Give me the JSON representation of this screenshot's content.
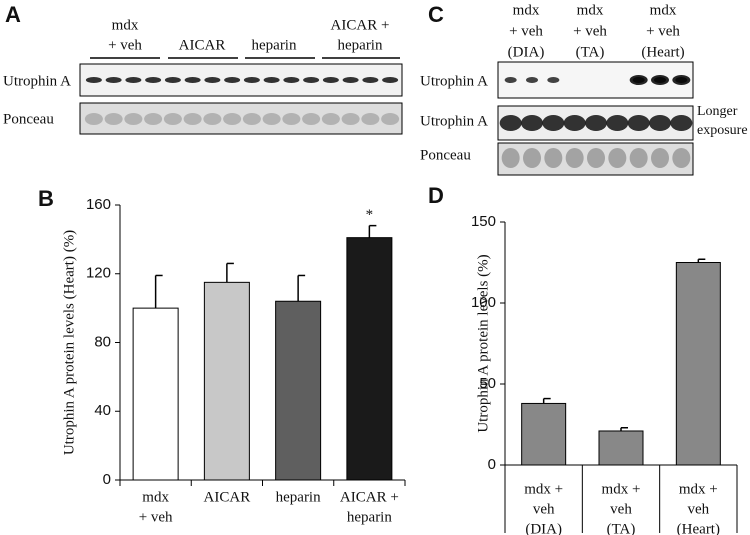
{
  "panel_labels": [
    "A",
    "B",
    "C",
    "D"
  ],
  "blot_a": {
    "groups": [
      [
        "mdx",
        "+ veh"
      ],
      [
        "AICAR"
      ],
      [
        "heparin"
      ],
      [
        "AICAR +",
        "heparin"
      ]
    ],
    "rows": [
      "Utrophin A",
      "Ponceau"
    ]
  },
  "blot_c": {
    "groups": [
      [
        "mdx",
        "+ veh",
        "(DIA)"
      ],
      [
        "mdx",
        "+ veh",
        "(TA)"
      ],
      [
        "mdx",
        "+ veh",
        "(Heart)"
      ]
    ],
    "rows": [
      "Utrophin A",
      "Utrophin A",
      "Ponceau"
    ],
    "note": [
      "Longer",
      "exposure"
    ]
  },
  "chart_data": [
    {
      "type": "bar",
      "ylabel": "Utrophin A protein levels (Heart) (%)",
      "categories": [
        [
          "mdx",
          "+ veh"
        ],
        [
          "AICAR"
        ],
        [
          "heparin"
        ],
        [
          "AICAR +",
          "heparin"
        ]
      ],
      "values": [
        100,
        115,
        104,
        141
      ],
      "errors": [
        19,
        11,
        15,
        7
      ],
      "colors": [
        "#ffffff",
        "#c8c8c8",
        "#5f5f5f",
        "#1a1a1a"
      ],
      "annotations": [
        {
          "text": "*",
          "index": 3
        }
      ],
      "ylim": [
        0,
        160
      ],
      "yticks": [
        0,
        40,
        80,
        120,
        160
      ]
    },
    {
      "type": "bar",
      "ylabel": "Utrophin A protein levels (%)",
      "categories": [
        [
          "mdx +",
          "veh",
          "(DIA)"
        ],
        [
          "mdx +",
          "veh",
          "(TA)"
        ],
        [
          "mdx +",
          "veh",
          "(Heart)"
        ]
      ],
      "values": [
        38,
        21,
        125
      ],
      "errors": [
        3,
        2,
        2
      ],
      "colors": [
        "#888888",
        "#888888",
        "#888888"
      ],
      "ylim": [
        0,
        150
      ],
      "yticks": [
        0,
        50,
        100,
        150
      ]
    }
  ]
}
